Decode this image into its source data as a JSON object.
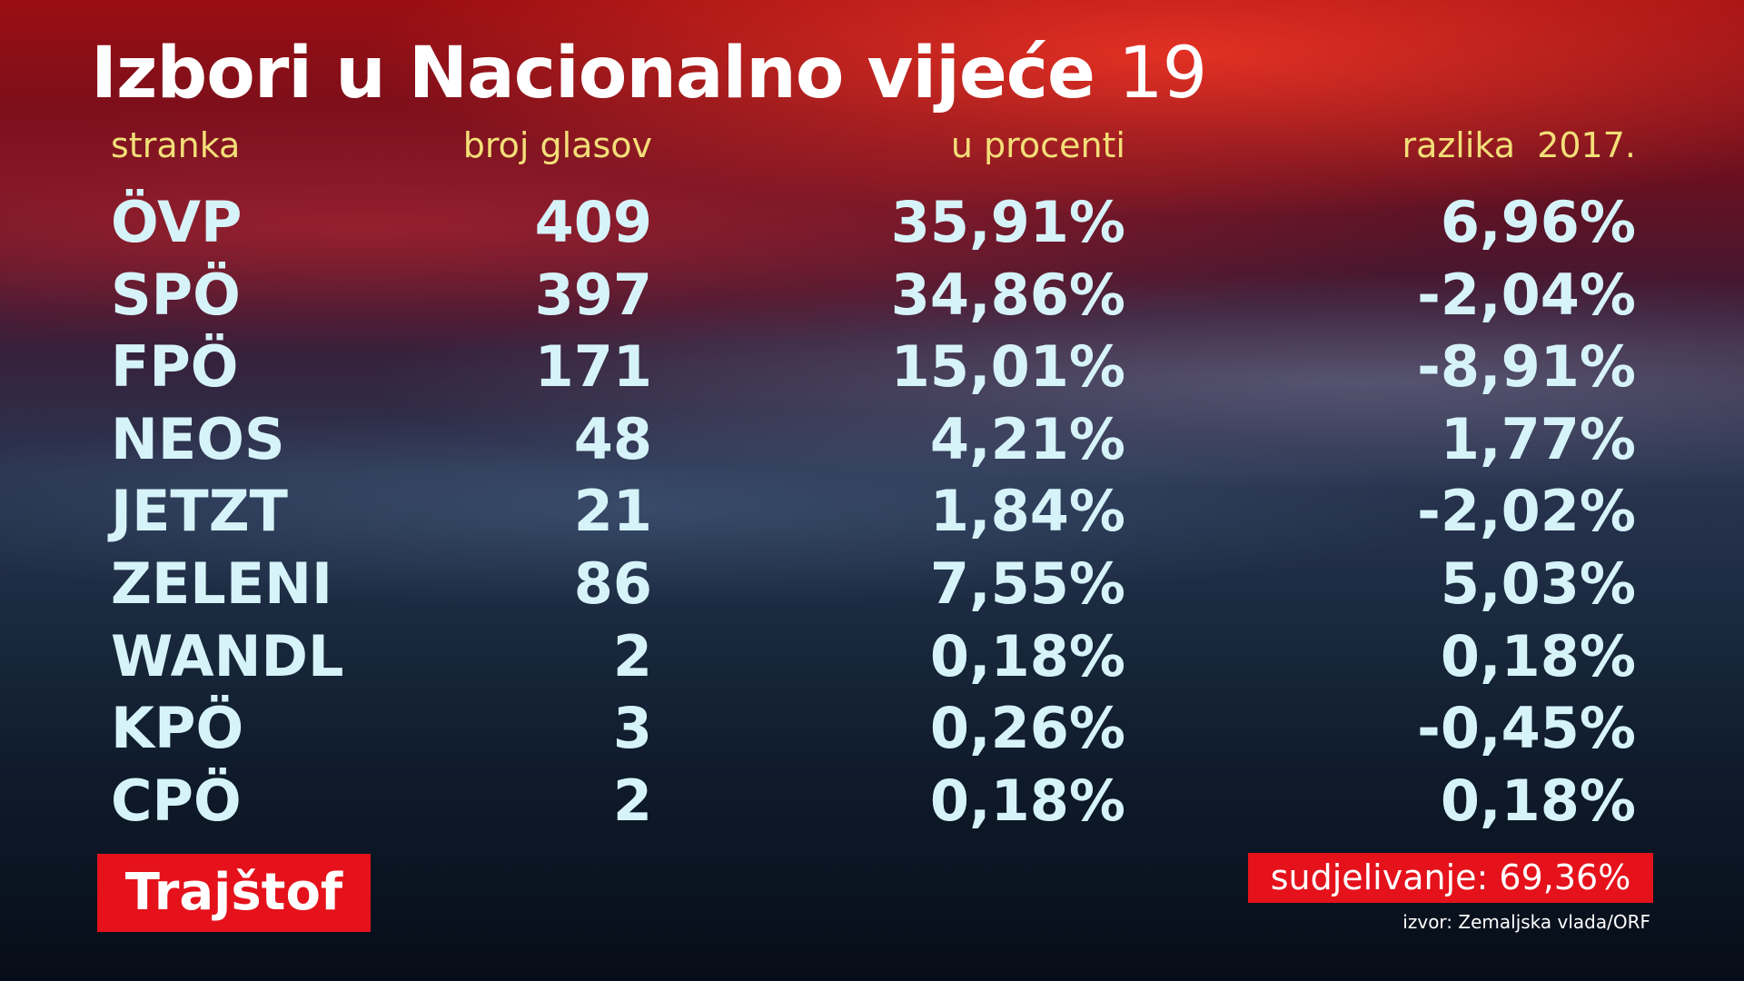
{
  "header": {
    "title": "Izbori u Nacionalno vijeće",
    "title_suffix": "19"
  },
  "table": {
    "columns": [
      "stranka",
      "broj glasov",
      "u procenti",
      "razlika  2017."
    ],
    "rows": [
      [
        "ÖVP",
        "409",
        "35,91%",
        "6,96%"
      ],
      [
        "SPÖ",
        "397",
        "34,86%",
        "-2,04%"
      ],
      [
        "FPÖ",
        "171",
        "15,01%",
        "-8,91%"
      ],
      [
        "NEOS",
        "48",
        "4,21%",
        "1,77%"
      ],
      [
        "JETZT",
        "21",
        "1,84%",
        "-2,02%"
      ],
      [
        "ZELENI",
        "86",
        "7,55%",
        "5,03%"
      ],
      [
        "WANDL",
        "2",
        "0,18%",
        "0,18%"
      ],
      [
        "KPÖ",
        "3",
        "0,26%",
        "-0,45%"
      ],
      [
        "CPÖ",
        "2",
        "0,18%",
        "0,18%"
      ]
    ]
  },
  "footer": {
    "location": "Trajštof",
    "turnout": "sudjelivanje: 69,36%",
    "source": "izvor: Zemaljska vlada/ORF"
  }
}
